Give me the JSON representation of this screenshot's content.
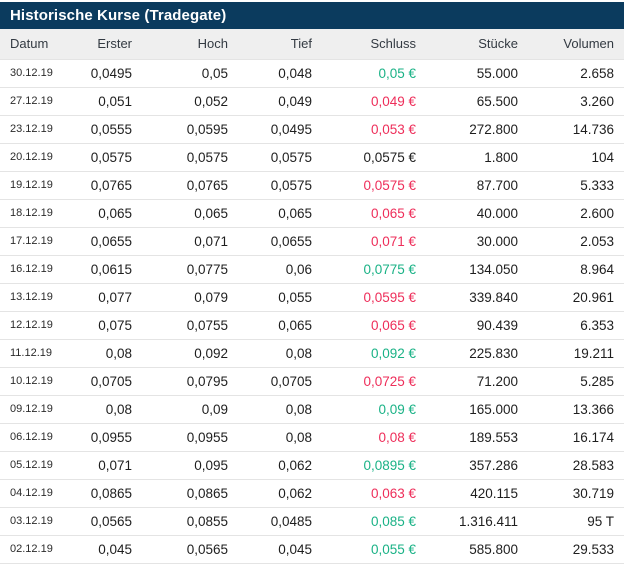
{
  "header": {
    "title": "Historische Kurse (Tradegate)"
  },
  "colors": {
    "header_bg": "#0b3b5e",
    "header_text": "#ffffff",
    "column_header_bg": "#efefef",
    "positive": "#1ab286",
    "negative": "#ee2e5a",
    "neutral": "#1e1e1e",
    "separator": "#e4e4e4"
  },
  "table": {
    "columns": [
      "Datum",
      "Erster",
      "Hoch",
      "Tief",
      "Schluss",
      "Stücke",
      "Volumen"
    ],
    "row_keys": [
      "datum",
      "erster",
      "hoch",
      "tief",
      "schluss",
      "stuecke",
      "volumen"
    ],
    "rows": [
      {
        "datum": "30.12.19",
        "erster": "0,0495",
        "hoch": "0,05",
        "tief": "0,048",
        "schluss": "0,05 €",
        "trend": "up",
        "stuecke": "55.000",
        "volumen": "2.658"
      },
      {
        "datum": "27.12.19",
        "erster": "0,051",
        "hoch": "0,052",
        "tief": "0,049",
        "schluss": "0,049 €",
        "trend": "down",
        "stuecke": "65.500",
        "volumen": "3.260"
      },
      {
        "datum": "23.12.19",
        "erster": "0,0555",
        "hoch": "0,0595",
        "tief": "0,0495",
        "schluss": "0,053 €",
        "trend": "down",
        "stuecke": "272.800",
        "volumen": "14.736"
      },
      {
        "datum": "20.12.19",
        "erster": "0,0575",
        "hoch": "0,0575",
        "tief": "0,0575",
        "schluss": "0,0575 €",
        "trend": "flat",
        "stuecke": "1.800",
        "volumen": "104"
      },
      {
        "datum": "19.12.19",
        "erster": "0,0765",
        "hoch": "0,0765",
        "tief": "0,0575",
        "schluss": "0,0575 €",
        "trend": "down",
        "stuecke": "87.700",
        "volumen": "5.333"
      },
      {
        "datum": "18.12.19",
        "erster": "0,065",
        "hoch": "0,065",
        "tief": "0,065",
        "schluss": "0,065 €",
        "trend": "down",
        "stuecke": "40.000",
        "volumen": "2.600"
      },
      {
        "datum": "17.12.19",
        "erster": "0,0655",
        "hoch": "0,071",
        "tief": "0,0655",
        "schluss": "0,071 €",
        "trend": "down",
        "stuecke": "30.000",
        "volumen": "2.053"
      },
      {
        "datum": "16.12.19",
        "erster": "0,0615",
        "hoch": "0,0775",
        "tief": "0,06",
        "schluss": "0,0775 €",
        "trend": "up",
        "stuecke": "134.050",
        "volumen": "8.964"
      },
      {
        "datum": "13.12.19",
        "erster": "0,077",
        "hoch": "0,079",
        "tief": "0,055",
        "schluss": "0,0595 €",
        "trend": "down",
        "stuecke": "339.840",
        "volumen": "20.961"
      },
      {
        "datum": "12.12.19",
        "erster": "0,075",
        "hoch": "0,0755",
        "tief": "0,065",
        "schluss": "0,065 €",
        "trend": "down",
        "stuecke": "90.439",
        "volumen": "6.353"
      },
      {
        "datum": "11.12.19",
        "erster": "0,08",
        "hoch": "0,092",
        "tief": "0,08",
        "schluss": "0,092 €",
        "trend": "up",
        "stuecke": "225.830",
        "volumen": "19.211"
      },
      {
        "datum": "10.12.19",
        "erster": "0,0705",
        "hoch": "0,0795",
        "tief": "0,0705",
        "schluss": "0,0725 €",
        "trend": "down",
        "stuecke": "71.200",
        "volumen": "5.285"
      },
      {
        "datum": "09.12.19",
        "erster": "0,08",
        "hoch": "0,09",
        "tief": "0,08",
        "schluss": "0,09 €",
        "trend": "up",
        "stuecke": "165.000",
        "volumen": "13.366"
      },
      {
        "datum": "06.12.19",
        "erster": "0,0955",
        "hoch": "0,0955",
        "tief": "0,08",
        "schluss": "0,08 €",
        "trend": "down",
        "stuecke": "189.553",
        "volumen": "16.174"
      },
      {
        "datum": "05.12.19",
        "erster": "0,071",
        "hoch": "0,095",
        "tief": "0,062",
        "schluss": "0,0895 €",
        "trend": "up",
        "stuecke": "357.286",
        "volumen": "28.583"
      },
      {
        "datum": "04.12.19",
        "erster": "0,0865",
        "hoch": "0,0865",
        "tief": "0,062",
        "schluss": "0,063 €",
        "trend": "down",
        "stuecke": "420.115",
        "volumen": "30.719"
      },
      {
        "datum": "03.12.19",
        "erster": "0,0565",
        "hoch": "0,0855",
        "tief": "0,0485",
        "schluss": "0,085 €",
        "trend": "up",
        "stuecke": "1.316.411",
        "volumen": "95 T"
      },
      {
        "datum": "02.12.19",
        "erster": "0,045",
        "hoch": "0,0565",
        "tief": "0,045",
        "schluss": "0,055 €",
        "trend": "up",
        "stuecke": "585.800",
        "volumen": "29.533"
      }
    ]
  }
}
